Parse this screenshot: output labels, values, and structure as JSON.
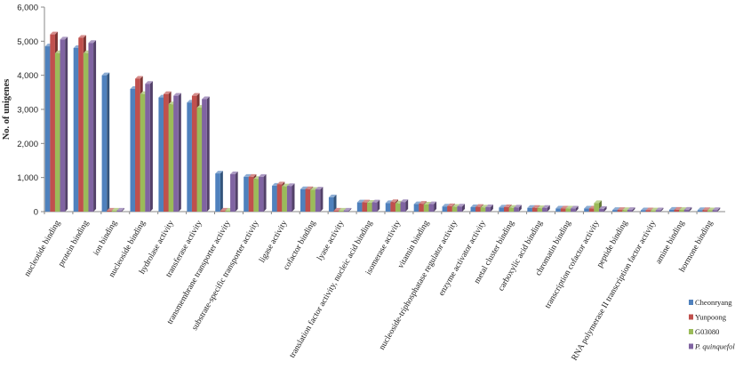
{
  "chart_data": {
    "type": "bar",
    "ylabel": "No. of unigenes",
    "ylim": [
      0,
      6000
    ],
    "yticks": [
      "0",
      "1,000",
      "2,000",
      "3,000",
      "4,000",
      "5,000",
      "6,000"
    ],
    "grid": false,
    "legend_position": "bottom-right",
    "categories": [
      "nucleotide binding",
      "protein binding",
      "ion binding",
      "nucleoside binding",
      "hydrolase activity",
      "transferase activity",
      "transmembrane transporter activity",
      "substrate-specific transporter activity",
      "ligase activity",
      "cofactor binding",
      "lyase activity",
      "translation factor activity, nucleic acid binding",
      "isomerase activity",
      "vitamin binding",
      "nucleoside-triphosphatase  regulator activity",
      "enzyme activator activity",
      "metal cluster binding",
      "carboxylic acid binding",
      "chromatin binding",
      "transcription cofactor activity",
      "peptide binding",
      "RNA polymerase  II transcription factor activity",
      "amine binding",
      "hormone binding"
    ],
    "series": [
      {
        "name": "Cheonryang",
        "color": "#4f81bd",
        "values": [
          4850,
          4800,
          4000,
          3600,
          3350,
          3200,
          1120,
          1020,
          760,
          660,
          420,
          270,
          250,
          220,
          150,
          130,
          120,
          110,
          90,
          90,
          50,
          40,
          55,
          45
        ]
      },
      {
        "name": "Yunpoong",
        "color": "#c0504d",
        "values": [
          5200,
          5100,
          30,
          3900,
          3450,
          3400,
          30,
          1020,
          800,
          660,
          30,
          270,
          280,
          230,
          160,
          140,
          130,
          110,
          90,
          90,
          50,
          40,
          55,
          45
        ]
      },
      {
        "name": "G03080",
        "color": "#9bbb59",
        "values": [
          4650,
          4650,
          30,
          3450,
          3150,
          3050,
          30,
          960,
          740,
          640,
          30,
          260,
          240,
          210,
          140,
          120,
          110,
          100,
          90,
          250,
          45,
          35,
          50,
          40
        ]
      },
      {
        "name": "P. quinquefolius",
        "color": "#8064a2",
        "values": [
          5050,
          4950,
          30,
          3750,
          3400,
          3300,
          1100,
          1020,
          750,
          650,
          30,
          270,
          280,
          220,
          150,
          130,
          120,
          110,
          90,
          80,
          50,
          40,
          55,
          45
        ]
      }
    ]
  }
}
